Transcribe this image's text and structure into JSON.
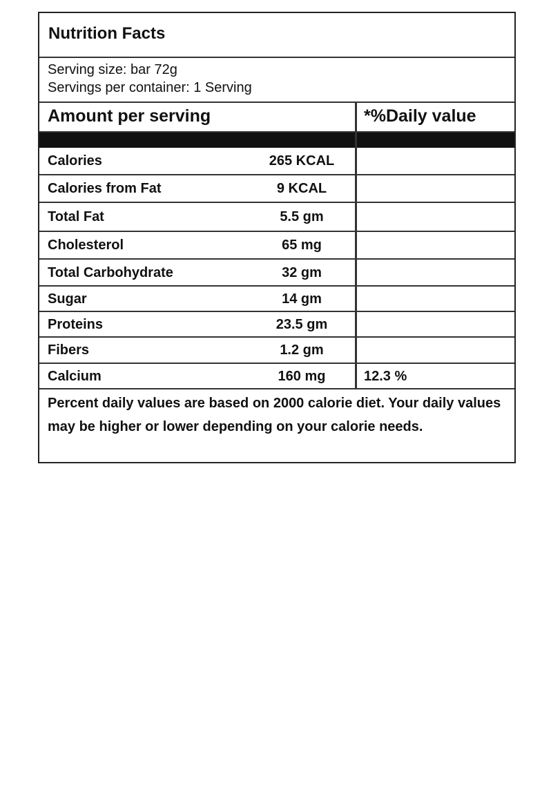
{
  "title": "Nutrition Facts",
  "serving_size": "Serving size: bar 72g",
  "servings_per_container": "Servings per container: 1 Serving",
  "header": {
    "amount": "Amount per serving",
    "daily": "*%Daily value"
  },
  "nutrients": [
    {
      "name": "Calories",
      "value": "265 KCAL",
      "daily": ""
    },
    {
      "name": "Calories from Fat",
      "value": "9  KCAL",
      "daily": ""
    },
    {
      "name": "Total Fat",
      "value": "5.5 gm",
      "daily": ""
    },
    {
      "name": "Cholesterol",
      "value": "65 mg",
      "daily": ""
    },
    {
      "name": "Total Carbohydrate",
      "value": "32 gm",
      "daily": ""
    },
    {
      "name": "Sugar",
      "value": "14 gm",
      "daily": ""
    },
    {
      "name": "Proteins",
      "value": "23.5 gm",
      "daily": ""
    },
    {
      "name": "Fibers",
      "value": "1.2 gm",
      "daily": ""
    },
    {
      "name": "Calcium",
      "value": "160 mg",
      "daily": "12.3 %"
    }
  ],
  "footnote": "Percent daily values are based on 2000 calorie diet. Your daily values may be higher or lower depending on your calorie needs."
}
